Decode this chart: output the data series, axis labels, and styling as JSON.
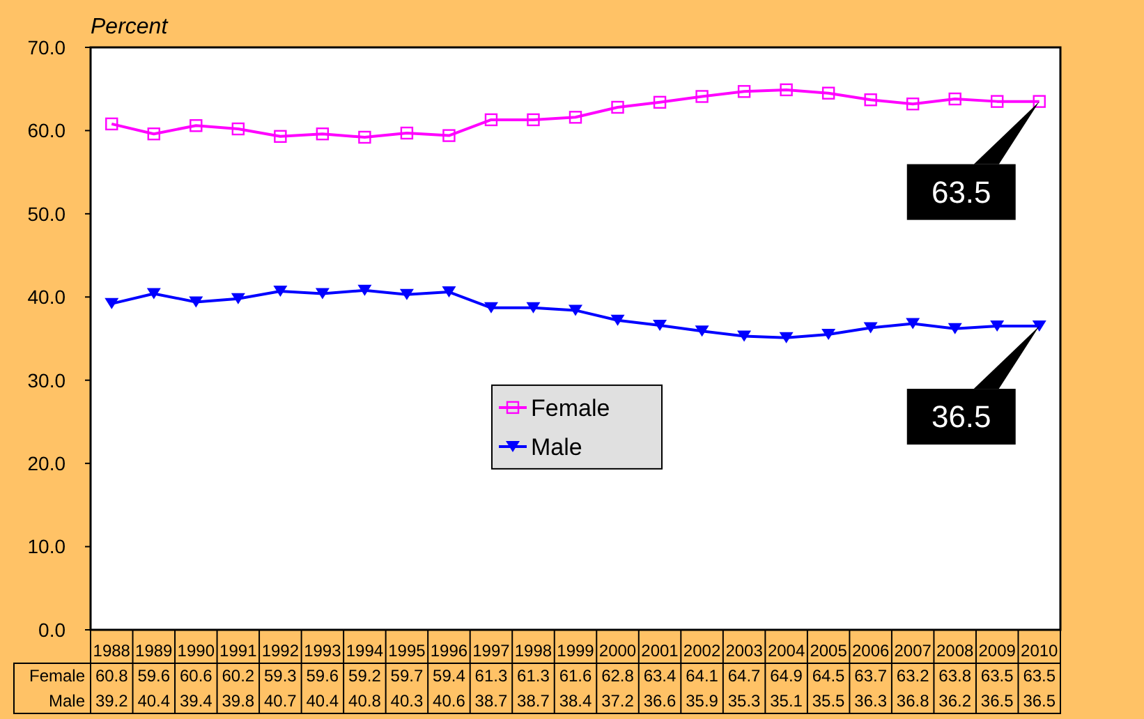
{
  "chart_data": {
    "type": "line",
    "ylabel": "Percent",
    "categories": [
      "1988",
      "1989",
      "1990",
      "1991",
      "1992",
      "1993",
      "1994",
      "1995",
      "1996",
      "1997",
      "1998",
      "1999",
      "2000",
      "2001",
      "2002",
      "2003",
      "2004",
      "2005",
      "2006",
      "2007",
      "2008",
      "2009",
      "2010"
    ],
    "series": [
      {
        "name": "Female",
        "color": "#ff00ff",
        "marker": "square",
        "values": [
          60.8,
          59.6,
          60.6,
          60.2,
          59.3,
          59.6,
          59.2,
          59.7,
          59.4,
          61.3,
          61.3,
          61.6,
          62.8,
          63.4,
          64.1,
          64.7,
          64.9,
          64.5,
          63.7,
          63.2,
          63.8,
          63.5,
          63.5
        ]
      },
      {
        "name": "Male",
        "color": "#0000ff",
        "marker": "triangle",
        "values": [
          39.2,
          40.4,
          39.4,
          39.8,
          40.7,
          40.4,
          40.8,
          40.3,
          40.6,
          38.7,
          38.7,
          38.4,
          37.2,
          36.6,
          35.9,
          35.3,
          35.1,
          35.5,
          36.3,
          36.8,
          36.2,
          36.5,
          36.5
        ]
      }
    ],
    "ylim": [
      0,
      70
    ],
    "yticks": [
      {
        "value": 0,
        "label": "0.0"
      },
      {
        "value": 10,
        "label": "10.0"
      },
      {
        "value": 20,
        "label": "20.0"
      },
      {
        "value": 30,
        "label": "30.0"
      },
      {
        "value": 40,
        "label": "40.0"
      },
      {
        "value": 50,
        "label": "50.0"
      },
      {
        "value": 60,
        "label": "60.0"
      },
      {
        "value": 70,
        "label": "70.0"
      }
    ],
    "grid": false,
    "legend": "center",
    "data_labels": true,
    "line_style": "solid",
    "annotations": [
      {
        "text": "63.5",
        "x": "2010",
        "y": 63.5
      },
      {
        "text": "36.5",
        "x": "2010",
        "y": 36.5
      }
    ]
  }
}
